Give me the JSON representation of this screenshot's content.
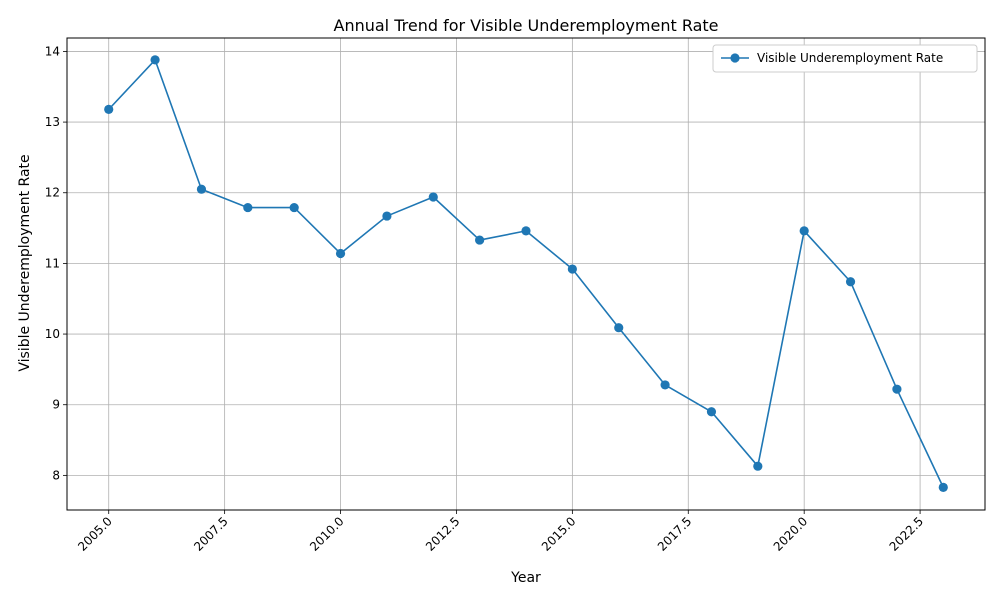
{
  "chart_data": {
    "type": "line",
    "title": "Annual Trend for Visible Underemployment Rate",
    "xlabel": "Year",
    "ylabel": "Visible Underemployment Rate",
    "xlim": [
      2004.1,
      2023.9
    ],
    "ylim": [
      7.51,
      14.19
    ],
    "xticks": [
      2005.0,
      2007.5,
      2010.0,
      2012.5,
      2015.0,
      2017.5,
      2020.0,
      2022.5
    ],
    "xtick_labels": [
      "2005.0",
      "2007.5",
      "2010.0",
      "2012.5",
      "2015.0",
      "2017.5",
      "2020.0",
      "2022.5"
    ],
    "yticks": [
      8,
      9,
      10,
      11,
      12,
      13,
      14
    ],
    "ytick_labels": [
      "8",
      "9",
      "10",
      "11",
      "12",
      "13",
      "14"
    ],
    "grid": true,
    "legend_position": "upper right",
    "color": "#1f77b4",
    "series": [
      {
        "name": "Visible Underemployment Rate",
        "x": [
          2005,
          2006,
          2007,
          2008,
          2009,
          2010,
          2011,
          2012,
          2013,
          2014,
          2015,
          2016,
          2017,
          2018,
          2019,
          2020,
          2021,
          2022,
          2023
        ],
        "values": [
          13.18,
          13.88,
          12.05,
          11.79,
          11.79,
          11.14,
          11.67,
          11.94,
          11.33,
          11.46,
          10.92,
          10.09,
          9.28,
          8.9,
          8.13,
          11.46,
          10.74,
          9.22,
          7.83
        ]
      }
    ]
  }
}
